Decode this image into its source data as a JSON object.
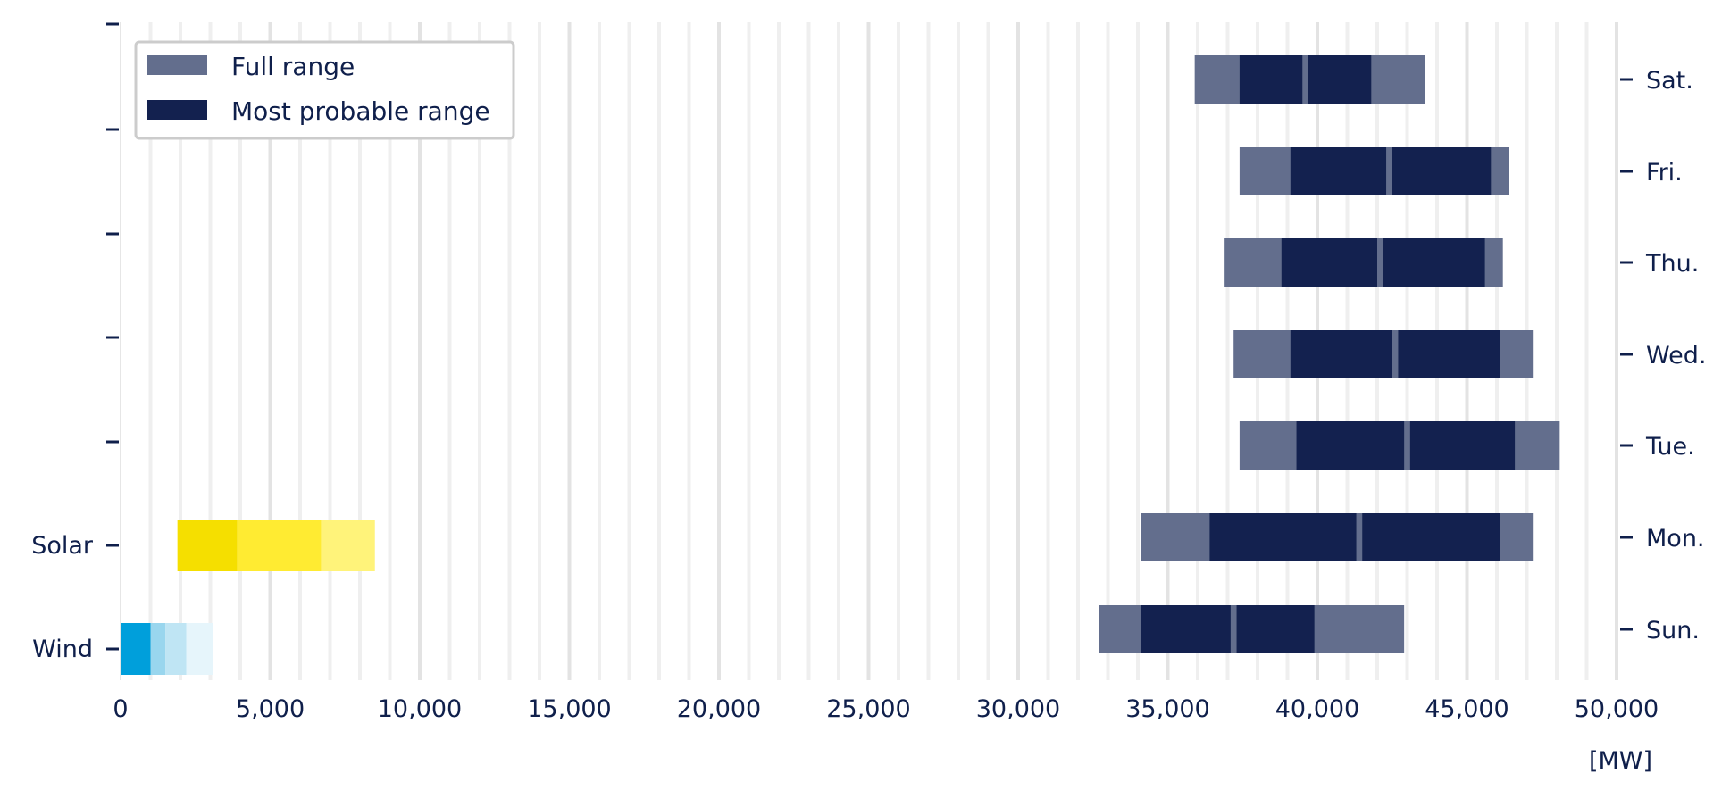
{
  "chart_data": {
    "type": "bar",
    "orientation": "horizontal",
    "xlim": [
      0,
      50000
    ],
    "x_ticks": [
      0,
      5000,
      10000,
      15000,
      20000,
      25000,
      30000,
      35000,
      40000,
      45000,
      50000
    ],
    "x_tick_labels": [
      "0",
      "5,000",
      "10,000",
      "15,000",
      "20,000",
      "25,000",
      "30,000",
      "35,000",
      "40,000",
      "45,000",
      "50,000"
    ],
    "x_unit_label": "[MW]",
    "grid": true,
    "legend_position": "top-left",
    "legend": [
      {
        "label": "Full range",
        "color": "#636e8d"
      },
      {
        "label": "Most probable range",
        "color": "#13214f"
      }
    ],
    "colors": {
      "full_range": "#636e8d",
      "most_probable": "#13214f",
      "text": "#0f1f4b",
      "wind": [
        "#009fdb",
        "#99d6ee",
        "#bfe5f4",
        "#e6f5fb"
      ],
      "solar": [
        "#f5df00",
        "#ffeb32",
        "#fff37a"
      ]
    },
    "right_axis_labels": [
      "Sat.",
      "Fri.",
      "Thu.",
      "Wed.",
      "Tue.",
      "Mon.",
      "Sun."
    ],
    "left_axis_labels": [
      "Solar",
      "Wind"
    ],
    "demand": [
      {
        "day": "Sat.",
        "full": [
          35900,
          43600
        ],
        "probable": [
          [
            37400,
            39500
          ],
          [
            39700,
            41800
          ]
        ]
      },
      {
        "day": "Fri.",
        "full": [
          37400,
          46400
        ],
        "probable": [
          [
            39100,
            42300
          ],
          [
            42500,
            45800
          ]
        ]
      },
      {
        "day": "Thu.",
        "full": [
          36900,
          46200
        ],
        "probable": [
          [
            38800,
            42000
          ],
          [
            42200,
            45600
          ]
        ]
      },
      {
        "day": "Wed.",
        "full": [
          37200,
          47200
        ],
        "probable": [
          [
            39100,
            42500
          ],
          [
            42700,
            46100
          ]
        ]
      },
      {
        "day": "Tue.",
        "full": [
          37400,
          48100
        ],
        "probable": [
          [
            39300,
            42900
          ],
          [
            43100,
            46600
          ]
        ]
      },
      {
        "day": "Mon.",
        "full": [
          34100,
          47200
        ],
        "probable": [
          [
            36400,
            41300
          ],
          [
            41500,
            46100
          ]
        ]
      },
      {
        "day": "Sun.",
        "full": [
          32700,
          42900
        ],
        "probable": [
          [
            34100,
            37100
          ],
          [
            37300,
            39900
          ]
        ]
      }
    ],
    "renewables": [
      {
        "name": "Solar",
        "bands": [
          [
            1900,
            3900
          ],
          [
            3900,
            6700
          ],
          [
            6700,
            8500
          ]
        ]
      },
      {
        "name": "Wind",
        "bands": [
          [
            0,
            1000
          ],
          [
            1000,
            1500
          ],
          [
            1500,
            2200
          ],
          [
            2200,
            3100
          ]
        ]
      }
    ]
  }
}
